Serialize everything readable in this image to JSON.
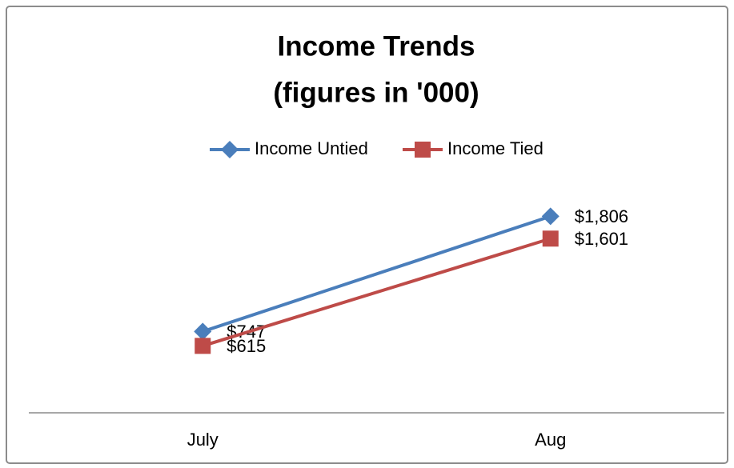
{
  "chart_data": {
    "type": "line",
    "title": "Income Trends",
    "subtitle": "(figures in '000)",
    "categories": [
      "July",
      "Aug"
    ],
    "series": [
      {
        "name": "Income Untied",
        "color": "#4a7ebb",
        "marker": "diamond",
        "values": [
          747,
          1806
        ],
        "value_labels": [
          "$747",
          "$1,806"
        ]
      },
      {
        "name": "Income Tied",
        "color": "#be4b48",
        "marker": "square",
        "values": [
          615,
          1601
        ],
        "value_labels": [
          "$615",
          "$1,601"
        ]
      }
    ],
    "ylim": [
      0,
      2000
    ],
    "legend": "top"
  }
}
